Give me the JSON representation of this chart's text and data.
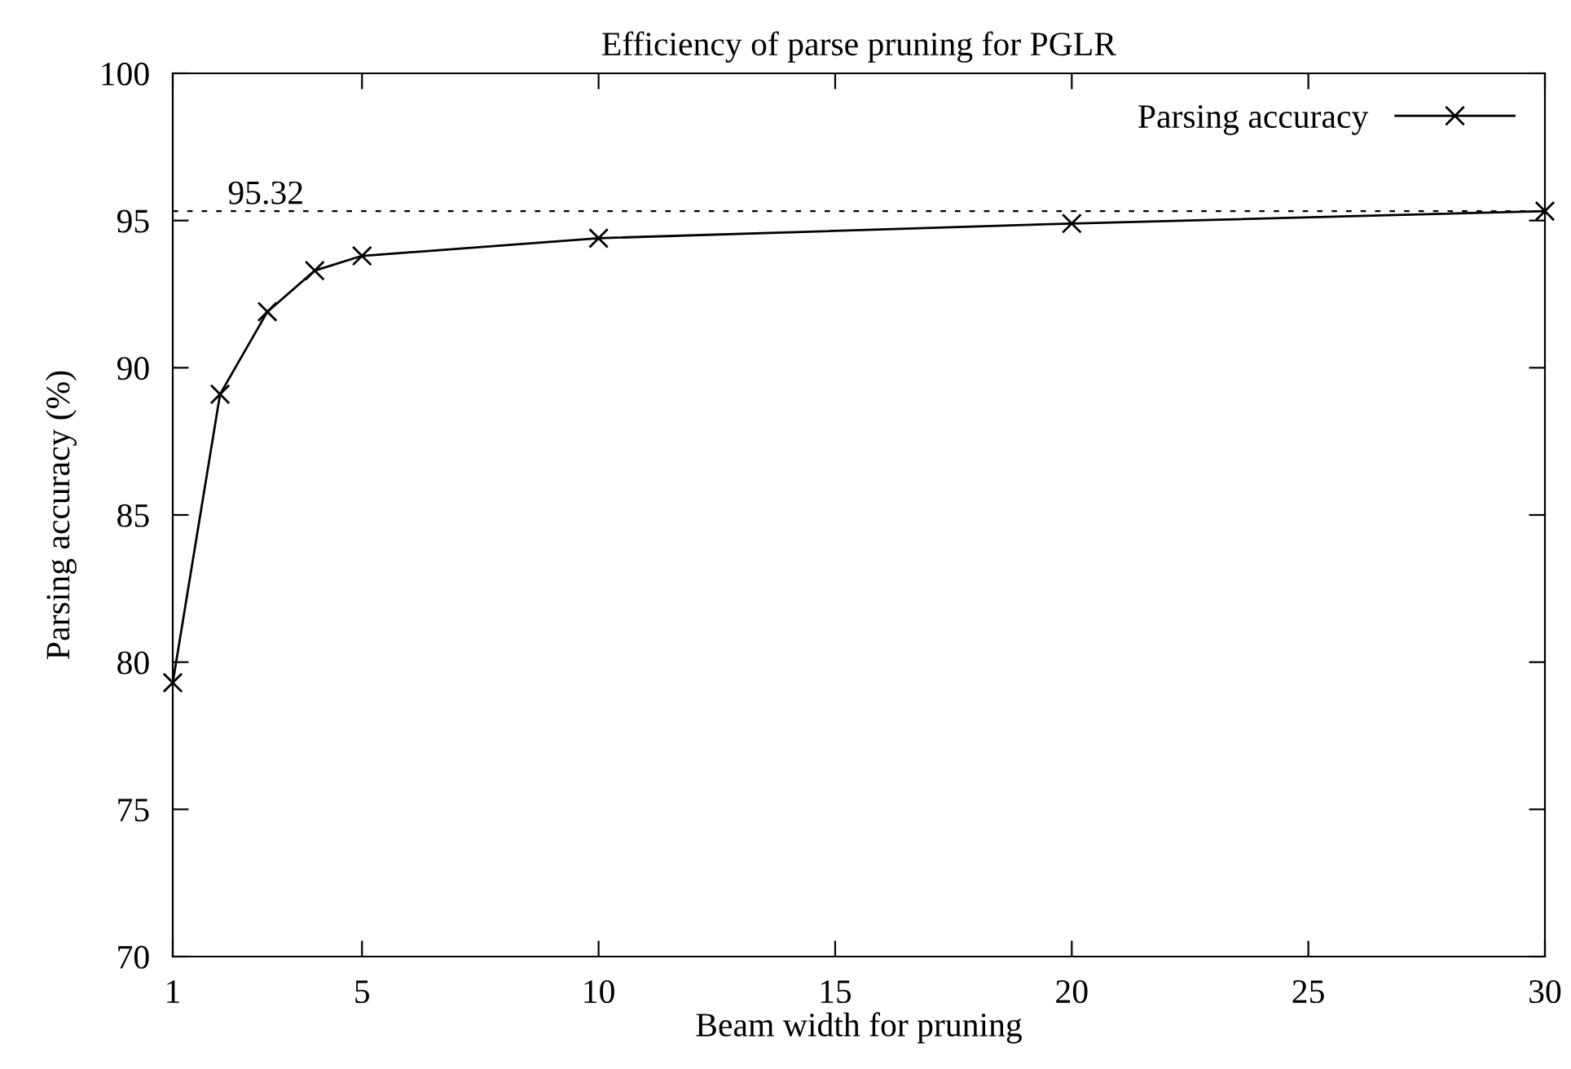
{
  "chart_data": {
    "type": "line",
    "title": "Efficiency of parse pruning for PGLR",
    "xlabel": "Beam width for pruning",
    "ylabel": "Parsing accuracy (%)",
    "x": [
      1,
      2,
      3,
      4,
      5,
      10,
      20,
      30
    ],
    "series": [
      {
        "name": "Parsing accuracy",
        "color": "#000000",
        "values": [
          79.3,
          89.1,
          91.9,
          93.3,
          93.8,
          94.4,
          94.9,
          95.32
        ]
      }
    ],
    "xlim": [
      1,
      30
    ],
    "xticks": [
      1,
      5,
      10,
      15,
      20,
      25,
      30
    ],
    "ylim": [
      70,
      100
    ],
    "yticks": [
      70,
      75,
      80,
      85,
      90,
      95,
      100
    ],
    "ref_lines": [
      {
        "axis": "y",
        "value": 95.32,
        "label": "95.32",
        "color": "#000000",
        "line_style": "dashed"
      }
    ],
    "marker": "cross",
    "line_style": "solid",
    "grid": false,
    "legend": "top right"
  }
}
